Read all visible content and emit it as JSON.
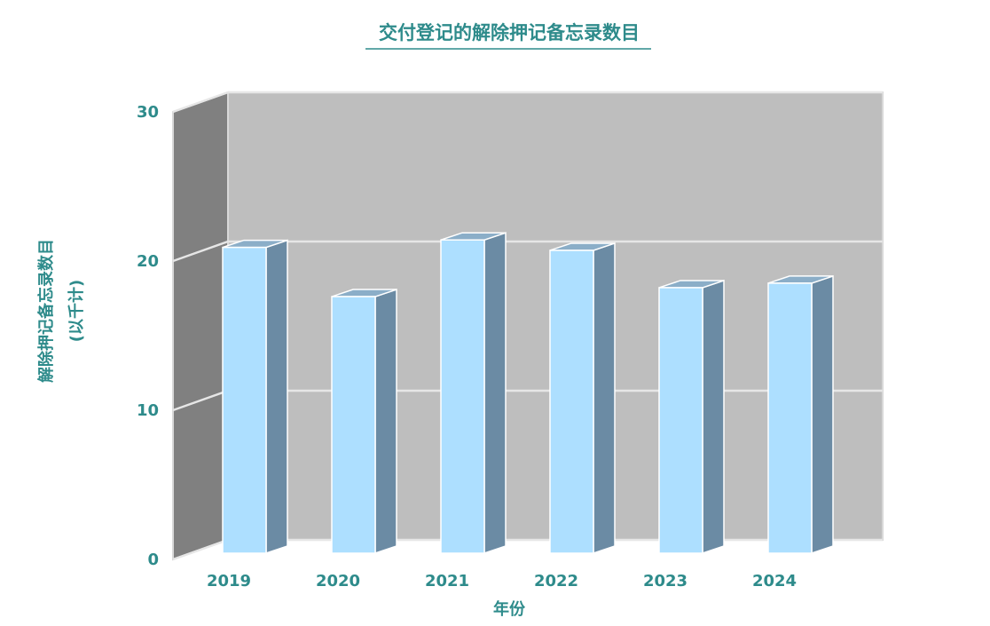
{
  "chart_data": {
    "type": "bar",
    "title": "交付登记的解除押记备忘录数目",
    "xlabel": "年份",
    "ylabel": "解除押记备忘录数目",
    "ylabel_unit": "(以千计)",
    "categories": [
      "2019",
      "2020",
      "2021",
      "2022",
      "2023",
      "2024"
    ],
    "values": [
      20.5,
      17.2,
      21.0,
      20.3,
      17.8,
      18.1
    ],
    "ylim": [
      0,
      30
    ],
    "yticks": [
      "0",
      "10",
      "20",
      "30"
    ],
    "grid": true,
    "legend": "none",
    "style": "3d",
    "colors": {
      "bar_front": "#ADDFFF",
      "bar_side": "#6B8BA4",
      "bar_top": "#8BAEC8",
      "back_wall": "#BEBEBE",
      "side_wall": "#808080",
      "text": "#2E8B8B"
    }
  }
}
